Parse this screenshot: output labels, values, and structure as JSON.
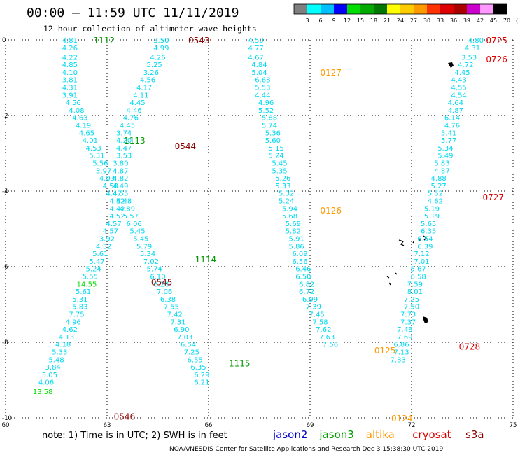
{
  "title": "00:00 — 11:59 UTC 11/11/2019",
  "subtitle": "12 hour collection of altimeter wave heights",
  "color_scale": {
    "labels": [
      "3",
      "6",
      "9",
      "12",
      "15",
      "18",
      "21",
      "24",
      "27",
      "30",
      "33",
      "36",
      "39",
      "42",
      "45",
      "70",
      "(ft)"
    ],
    "colors": [
      "#7f7f7f",
      "#00ffff",
      "#00bfff",
      "#0000ff",
      "#00dd00",
      "#00aa00",
      "#007700",
      "#ffff00",
      "#ffcc00",
      "#ff9900",
      "#ff3300",
      "#dd0000",
      "#aa0000",
      "#cc00cc",
      "#ff99ff",
      "#000000"
    ]
  },
  "note": "note: 1) Time is in UTC; 2) SWH is in feet",
  "legend": [
    {
      "name": "jason2",
      "color": "#0000cc"
    },
    {
      "name": "jason3",
      "color": "#009900"
    },
    {
      "name": "altika",
      "color": "#ff9900"
    },
    {
      "name": "cryosat",
      "color": "#dd0000"
    },
    {
      "name": "s3a",
      "color": "#8b0000"
    }
  ],
  "credit": "NOAA/NESDIS Center for Satellite Applications and Research    Dec  3 15:38:30 UTC 2019",
  "chart_data": {
    "type": "scatter",
    "xlim": [
      60,
      75
    ],
    "ylim": [
      -10,
      0
    ],
    "x_ticks": [
      "60",
      "63",
      "66",
      "69",
      "72",
      "75"
    ],
    "y_ticks": [
      "0",
      "-2",
      "-4",
      "-6",
      "-8",
      "-10"
    ],
    "grid": true,
    "series": [
      {
        "name": "jason3",
        "color": "#009900",
        "passes": [
          {
            "label": "1112",
            "lx": 62.6,
            "ly": 0.0
          },
          {
            "label": "1113",
            "lx": 63.5,
            "ly": -2.65
          },
          {
            "label": "1114",
            "lx": 65.6,
            "ly": -5.8
          },
          {
            "label": "1115",
            "lx": 66.6,
            "ly": -8.55
          }
        ]
      },
      {
        "name": "s3a",
        "color": "#8b0000",
        "passes": [
          {
            "label": "0543",
            "lx": 65.4,
            "ly": 0.0
          },
          {
            "label": "0544",
            "lx": 65.0,
            "ly": -2.8
          },
          {
            "label": "0545",
            "lx": 64.3,
            "ly": -6.4
          },
          {
            "label": "0546",
            "lx": 63.2,
            "ly": -9.95
          }
        ]
      },
      {
        "name": "altika",
        "color": "#ff9900",
        "passes": [
          {
            "label": "0127",
            "lx": 69.3,
            "ly": -0.85
          },
          {
            "label": "0126",
            "lx": 69.3,
            "ly": -4.5
          },
          {
            "label": "0125",
            "lx": 70.9,
            "ly": -8.2
          },
          {
            "label": "0124",
            "lx": 71.4,
            "ly": -10.0
          }
        ]
      },
      {
        "name": "cryosat",
        "color": "#dd0000",
        "passes": [
          {
            "label": "0725",
            "lx": 74.2,
            "ly": 0.0
          },
          {
            "label": "0726",
            "lx": 74.2,
            "ly": -0.5
          },
          {
            "label": "0727",
            "lx": 74.1,
            "ly": -4.15
          },
          {
            "label": "0728",
            "lx": 73.4,
            "ly": -8.1
          }
        ]
      }
    ],
    "points": [
      [
        61.9,
        0.0,
        "4.81"
      ],
      [
        61.9,
        -0.2,
        "4.26"
      ],
      [
        61.9,
        -0.45,
        "4.22"
      ],
      [
        61.9,
        -0.65,
        "4.85"
      ],
      [
        61.9,
        -0.85,
        "4.10"
      ],
      [
        61.9,
        -1.05,
        "3.81"
      ],
      [
        61.9,
        -1.25,
        "4.31"
      ],
      [
        61.9,
        -1.45,
        "3.91"
      ],
      [
        62.0,
        -1.65,
        "4.56"
      ],
      [
        62.1,
        -1.85,
        "4.08"
      ],
      [
        62.2,
        -2.05,
        "4.63"
      ],
      [
        62.3,
        -2.25,
        "4.19"
      ],
      [
        62.4,
        -2.45,
        "4.65"
      ],
      [
        62.5,
        -2.65,
        "4.01"
      ],
      [
        62.6,
        -2.85,
        "4.53"
      ],
      [
        62.7,
        -3.05,
        "5.31"
      ],
      [
        62.8,
        -3.25,
        "5.56"
      ],
      [
        62.9,
        -3.45,
        "3.97"
      ],
      [
        63.0,
        -3.65,
        "4.03"
      ],
      [
        63.1,
        -3.85,
        "4.58"
      ],
      [
        63.2,
        -4.05,
        "4.47"
      ],
      [
        63.3,
        -4.25,
        "4.52"
      ],
      [
        63.3,
        -4.45,
        "4.42"
      ],
      [
        63.3,
        -4.65,
        "4.52"
      ],
      [
        63.2,
        -4.85,
        "4.57"
      ],
      [
        63.1,
        -5.05,
        "4.57"
      ],
      [
        63.0,
        -5.25,
        "3.92"
      ],
      [
        62.9,
        -5.45,
        "4.32"
      ],
      [
        62.8,
        -5.65,
        "5.61"
      ],
      [
        62.7,
        -5.85,
        "5.47"
      ],
      [
        62.6,
        -6.05,
        "5.24"
      ],
      [
        62.5,
        -6.25,
        "5.55"
      ],
      [
        62.4,
        -6.45,
        "14.55",
        "#00dd00"
      ],
      [
        62.3,
        -6.65,
        "5.61"
      ],
      [
        62.2,
        -6.85,
        "5.31"
      ],
      [
        62.2,
        -7.05,
        "5.83"
      ],
      [
        62.1,
        -7.25,
        "7.75"
      ],
      [
        62.0,
        -7.45,
        "4.96"
      ],
      [
        61.9,
        -7.65,
        "4.62"
      ],
      [
        61.8,
        -7.85,
        "4.13"
      ],
      [
        61.7,
        -8.05,
        "4.18"
      ],
      [
        61.6,
        -8.25,
        "5.33"
      ],
      [
        61.5,
        -8.45,
        "5.48"
      ],
      [
        61.4,
        -8.65,
        "3.84"
      ],
      [
        61.3,
        -8.85,
        "5.05"
      ],
      [
        61.2,
        -9.05,
        "4.06"
      ],
      [
        61.1,
        -9.3,
        "13.58",
        "#00dd00"
      ],
      [
        64.6,
        0.0,
        "3.50"
      ],
      [
        64.6,
        -0.2,
        "4.99"
      ],
      [
        64.5,
        -0.45,
        "4.26"
      ],
      [
        64.4,
        -0.65,
        "5.25"
      ],
      [
        64.3,
        -0.85,
        "3.26"
      ],
      [
        64.2,
        -1.05,
        "4.56"
      ],
      [
        64.1,
        -1.25,
        "4.17"
      ],
      [
        64.0,
        -1.45,
        "4.11"
      ],
      [
        63.9,
        -1.65,
        "4.45"
      ],
      [
        63.8,
        -1.85,
        "4.46"
      ],
      [
        63.7,
        -2.05,
        "4.76"
      ],
      [
        63.6,
        -2.25,
        "4.45"
      ],
      [
        63.5,
        -2.45,
        "3.74"
      ],
      [
        63.5,
        -2.65,
        "4.20"
      ],
      [
        63.5,
        -2.85,
        "4.47"
      ],
      [
        63.5,
        -3.05,
        "3.53"
      ],
      [
        63.4,
        -3.25,
        "3.80"
      ],
      [
        63.4,
        -3.45,
        "4.87"
      ],
      [
        63.4,
        -3.65,
        "4.82"
      ],
      [
        63.4,
        -3.85,
        "4.49"
      ],
      [
        63.4,
        -4.05,
        "4.55"
      ],
      [
        63.5,
        -4.25,
        "4.48"
      ],
      [
        63.6,
        -4.45,
        "4.89"
      ],
      [
        63.7,
        -4.65,
        "5.57"
      ],
      [
        63.8,
        -4.85,
        "6.06"
      ],
      [
        63.9,
        -5.05,
        "5.45"
      ],
      [
        64.0,
        -5.25,
        "5.45"
      ],
      [
        64.1,
        -5.45,
        "5.79"
      ],
      [
        64.2,
        -5.65,
        "5.34"
      ],
      [
        64.3,
        -5.85,
        "7.02"
      ],
      [
        64.4,
        -6.05,
        "5.74"
      ],
      [
        64.5,
        -6.25,
        "6.10"
      ],
      [
        64.6,
        -6.45,
        "6.28"
      ],
      [
        64.7,
        -6.65,
        "7.06"
      ],
      [
        64.8,
        -6.85,
        "6.38"
      ],
      [
        64.9,
        -7.05,
        "7.55"
      ],
      [
        65.0,
        -7.25,
        "7.42"
      ],
      [
        65.1,
        -7.45,
        "7.31"
      ],
      [
        65.2,
        -7.65,
        "6.90"
      ],
      [
        65.3,
        -7.85,
        "7.03"
      ],
      [
        65.4,
        -8.05,
        "6.54"
      ],
      [
        65.5,
        -8.25,
        "7.25"
      ],
      [
        65.6,
        -8.45,
        "6.55"
      ],
      [
        65.7,
        -8.65,
        "6.35"
      ],
      [
        65.8,
        -8.85,
        "6.29"
      ],
      [
        65.8,
        -9.05,
        "6.21"
      ],
      [
        67.4,
        0.0,
        "4.50"
      ],
      [
        67.4,
        -0.2,
        "4.77"
      ],
      [
        67.4,
        -0.45,
        "4.67"
      ],
      [
        67.5,
        -0.65,
        "4.84"
      ],
      [
        67.5,
        -0.85,
        "5.04"
      ],
      [
        67.6,
        -1.05,
        "6.68"
      ],
      [
        67.6,
        -1.25,
        "5.53"
      ],
      [
        67.6,
        -1.45,
        "4.44"
      ],
      [
        67.7,
        -1.65,
        "4.96"
      ],
      [
        67.7,
        -1.85,
        "5.52"
      ],
      [
        67.8,
        -2.05,
        "5.68"
      ],
      [
        67.8,
        -2.25,
        "5.74"
      ],
      [
        67.9,
        -2.45,
        "5.36"
      ],
      [
        67.9,
        -2.65,
        "5.60"
      ],
      [
        68.0,
        -2.85,
        "5.15"
      ],
      [
        68.0,
        -3.05,
        "5.24"
      ],
      [
        68.1,
        -3.25,
        "5.45"
      ],
      [
        68.1,
        -3.45,
        "5.35"
      ],
      [
        68.2,
        -3.65,
        "5.26"
      ],
      [
        68.2,
        -3.85,
        "5.33"
      ],
      [
        68.3,
        -4.05,
        "5.32"
      ],
      [
        68.3,
        -4.25,
        "5.24"
      ],
      [
        68.4,
        -4.45,
        "5.94"
      ],
      [
        68.4,
        -4.65,
        "5.68"
      ],
      [
        68.5,
        -4.85,
        "5.69"
      ],
      [
        68.5,
        -5.05,
        "5.82"
      ],
      [
        68.6,
        -5.25,
        "5.91"
      ],
      [
        68.6,
        -5.45,
        "5.86"
      ],
      [
        68.7,
        -5.65,
        "6.09"
      ],
      [
        68.7,
        -5.85,
        "6.56"
      ],
      [
        68.8,
        -6.05,
        "6.46"
      ],
      [
        68.8,
        -6.25,
        "6.50"
      ],
      [
        68.9,
        -6.45,
        "6.82"
      ],
      [
        68.9,
        -6.65,
        "6.72"
      ],
      [
        69.0,
        -6.85,
        "6.99"
      ],
      [
        69.1,
        -7.05,
        "7.39"
      ],
      [
        69.2,
        -7.25,
        "7.45"
      ],
      [
        69.3,
        -7.45,
        "7.58"
      ],
      [
        69.4,
        -7.65,
        "7.62"
      ],
      [
        69.5,
        -7.85,
        "7.63"
      ],
      [
        69.6,
        -8.05,
        "7.56"
      ],
      [
        73.9,
        0.0,
        "4.80"
      ],
      [
        73.8,
        -0.2,
        "4.31"
      ],
      [
        73.7,
        -0.45,
        "3.53"
      ],
      [
        73.6,
        -0.65,
        "4.72"
      ],
      [
        73.5,
        -0.85,
        "4.45"
      ],
      [
        73.4,
        -1.05,
        "4.43"
      ],
      [
        73.4,
        -1.25,
        "4.55"
      ],
      [
        73.4,
        -1.45,
        "4.54"
      ],
      [
        73.3,
        -1.65,
        "4.64"
      ],
      [
        73.3,
        -1.85,
        "4.87"
      ],
      [
        73.2,
        -2.05,
        "6.14"
      ],
      [
        73.2,
        -2.25,
        "4.76"
      ],
      [
        73.1,
        -2.45,
        "5.41"
      ],
      [
        73.1,
        -2.65,
        "5.77"
      ],
      [
        73.0,
        -2.85,
        "5.34"
      ],
      [
        73.0,
        -3.05,
        "5.49"
      ],
      [
        72.9,
        -3.25,
        "5.83"
      ],
      [
        72.9,
        -3.45,
        "4.87"
      ],
      [
        72.8,
        -3.65,
        "4.88"
      ],
      [
        72.8,
        -3.85,
        "5.27"
      ],
      [
        72.7,
        -4.05,
        "5.52"
      ],
      [
        72.7,
        -4.25,
        "4.62"
      ],
      [
        72.6,
        -4.45,
        "5.19"
      ],
      [
        72.6,
        -4.65,
        "5.19"
      ],
      [
        72.5,
        -4.85,
        "5.65"
      ],
      [
        72.5,
        -5.05,
        "6.35"
      ],
      [
        72.4,
        -5.25,
        "6.54"
      ],
      [
        72.4,
        -5.45,
        "6.39"
      ],
      [
        72.3,
        -5.65,
        "7.12"
      ],
      [
        72.3,
        -5.85,
        "7.01"
      ],
      [
        72.2,
        -6.05,
        "5.67"
      ],
      [
        72.2,
        -6.25,
        "6.58"
      ],
      [
        72.1,
        -6.45,
        "7.59"
      ],
      [
        72.1,
        -6.65,
        "8.01"
      ],
      [
        72.0,
        -6.85,
        "7.25"
      ],
      [
        72.0,
        -7.05,
        "7.50"
      ],
      [
        71.9,
        -7.25,
        "7.73"
      ],
      [
        71.9,
        -7.45,
        "7.37"
      ],
      [
        71.8,
        -7.65,
        "7.48"
      ],
      [
        71.8,
        -7.85,
        "7.69"
      ],
      [
        71.7,
        -8.05,
        "6.86"
      ],
      [
        71.7,
        -8.25,
        "7.13"
      ],
      [
        71.6,
        -8.45,
        "7.33"
      ]
    ]
  }
}
